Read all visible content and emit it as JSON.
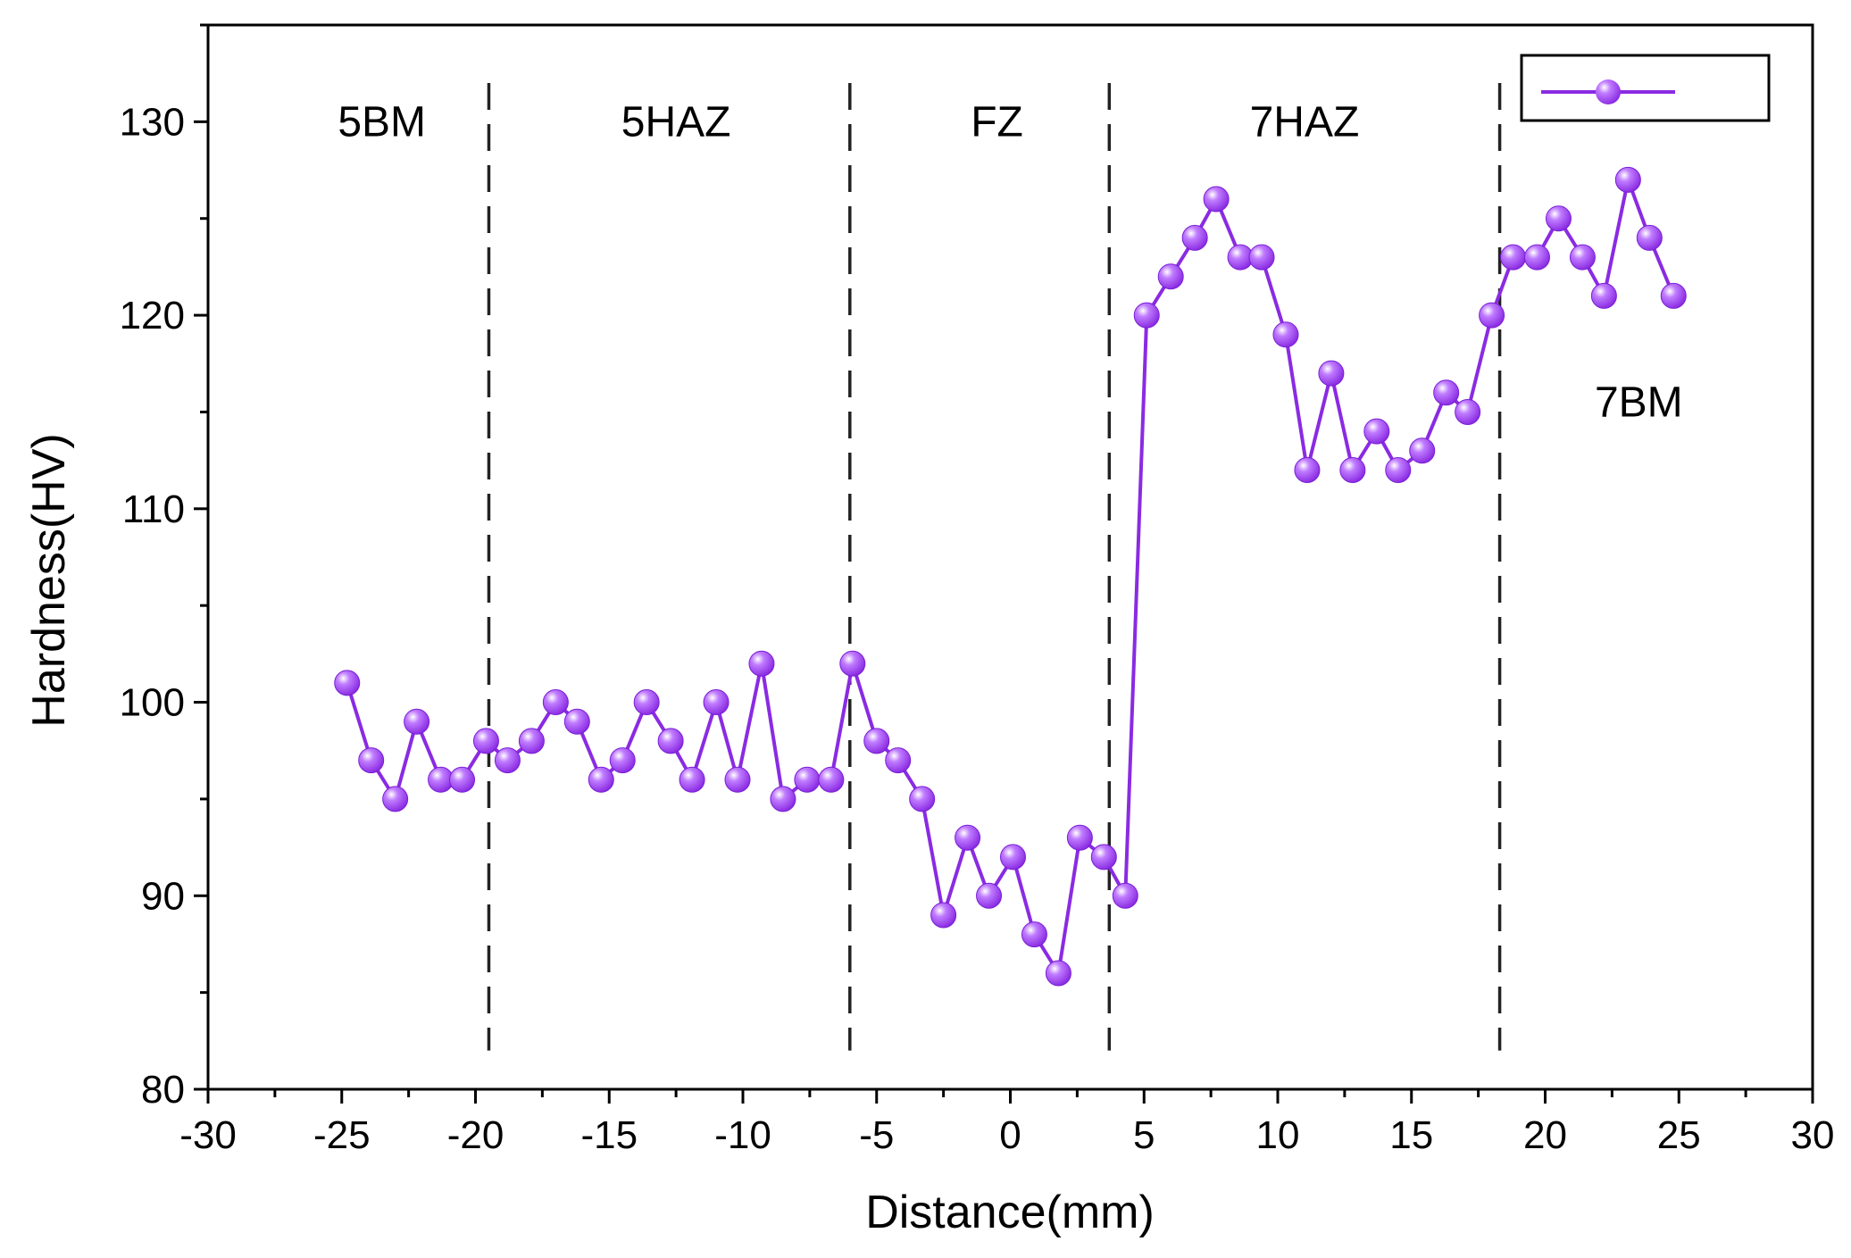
{
  "chart_data": {
    "type": "line",
    "title": "",
    "xlabel": "Distance(mm)",
    "ylabel": "Hardness(HV)",
    "xlim": [
      -30,
      30
    ],
    "ylim": [
      80,
      135
    ],
    "xticks": [
      -30,
      -25,
      -20,
      -15,
      -10,
      -5,
      0,
      5,
      10,
      15,
      20,
      25,
      30
    ],
    "yticks": [
      80,
      90,
      100,
      110,
      120,
      130
    ],
    "legend": {
      "position": "top-right",
      "entries": [
        ""
      ]
    },
    "series_color": "#8a2be2",
    "region_boundaries": [
      -19.5,
      -6.0,
      3.7,
      18.3
    ],
    "region_labels": [
      {
        "text": "5BM",
        "x": -23.5,
        "y": 130
      },
      {
        "text": "5HAZ",
        "x": -12.5,
        "y": 130
      },
      {
        "text": "FZ",
        "x": -0.5,
        "y": 130
      },
      {
        "text": "7HAZ",
        "x": 11.0,
        "y": 130
      },
      {
        "text": "7BM",
        "x": 23.5,
        "y": 115.5
      }
    ],
    "series": [
      {
        "name": "",
        "points": [
          [
            -24.8,
            101
          ],
          [
            -23.9,
            97
          ],
          [
            -23.0,
            95
          ],
          [
            -22.2,
            99
          ],
          [
            -21.3,
            96
          ],
          [
            -20.5,
            96
          ],
          [
            -19.6,
            98
          ],
          [
            -18.8,
            97
          ],
          [
            -17.9,
            98
          ],
          [
            -17.0,
            100
          ],
          [
            -16.2,
            99
          ],
          [
            -15.3,
            96
          ],
          [
            -14.5,
            97
          ],
          [
            -13.6,
            100
          ],
          [
            -12.7,
            98
          ],
          [
            -11.9,
            96
          ],
          [
            -11.0,
            100
          ],
          [
            -10.2,
            96
          ],
          [
            -9.3,
            102
          ],
          [
            -8.5,
            95
          ],
          [
            -7.6,
            96
          ],
          [
            -6.7,
            96
          ],
          [
            -5.9,
            102
          ],
          [
            -5.0,
            98
          ],
          [
            -4.2,
            97
          ],
          [
            -3.3,
            95
          ],
          [
            -2.5,
            89
          ],
          [
            -1.6,
            93
          ],
          [
            -0.8,
            90
          ],
          [
            0.1,
            92
          ],
          [
            0.9,
            88
          ],
          [
            1.8,
            86
          ],
          [
            2.6,
            93
          ],
          [
            3.5,
            92
          ],
          [
            4.3,
            90
          ],
          [
            5.1,
            120
          ],
          [
            6.0,
            122
          ],
          [
            6.9,
            124
          ],
          [
            7.7,
            126
          ],
          [
            8.6,
            123
          ],
          [
            9.4,
            123
          ],
          [
            10.3,
            119
          ],
          [
            11.1,
            112
          ],
          [
            12.0,
            117
          ],
          [
            12.8,
            112
          ],
          [
            13.7,
            114
          ],
          [
            14.5,
            112
          ],
          [
            15.4,
            113
          ],
          [
            16.3,
            116
          ],
          [
            17.1,
            115
          ],
          [
            18.0,
            120
          ],
          [
            18.8,
            123
          ],
          [
            19.7,
            123
          ],
          [
            20.5,
            125
          ],
          [
            21.4,
            123
          ],
          [
            22.2,
            121
          ],
          [
            23.1,
            127
          ],
          [
            23.9,
            124
          ],
          [
            24.8,
            121
          ]
        ]
      }
    ]
  }
}
